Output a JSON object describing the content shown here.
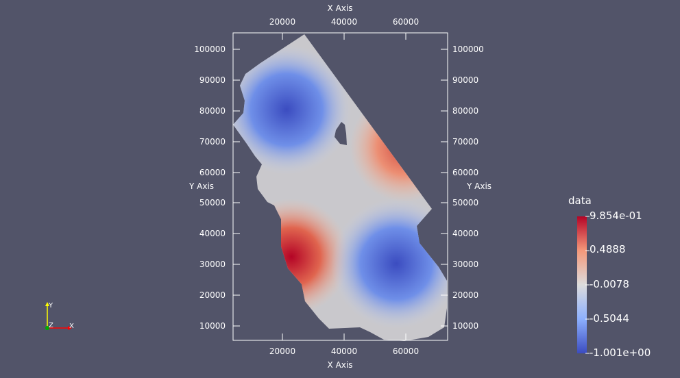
{
  "view": {
    "x_axis_title": "X Axis",
    "y_axis_title": "Y Axis",
    "x_ticks": [
      "20000",
      "40000",
      "60000"
    ],
    "y_ticks": [
      "100000",
      "90000",
      "80000",
      "70000",
      "60000",
      "50000",
      "40000",
      "30000",
      "20000",
      "10000"
    ]
  },
  "colorbar": {
    "title": "data",
    "labels": [
      "9.854e-01",
      "0.4888",
      "-0.0078",
      "-0.5044",
      "-1.001e+00"
    ],
    "colors": [
      "#b40426",
      "#f4987a",
      "#dddcdc",
      "#8db0fe",
      "#3b4cc0"
    ]
  },
  "orientation": {
    "y": "Y",
    "z": "Z",
    "x": "X",
    "y_color": "#ffff00",
    "x_color": "#ff0000",
    "z_color": "#00aa00"
  },
  "colors": {
    "background": "#525469",
    "axes": "#ffffff"
  }
}
